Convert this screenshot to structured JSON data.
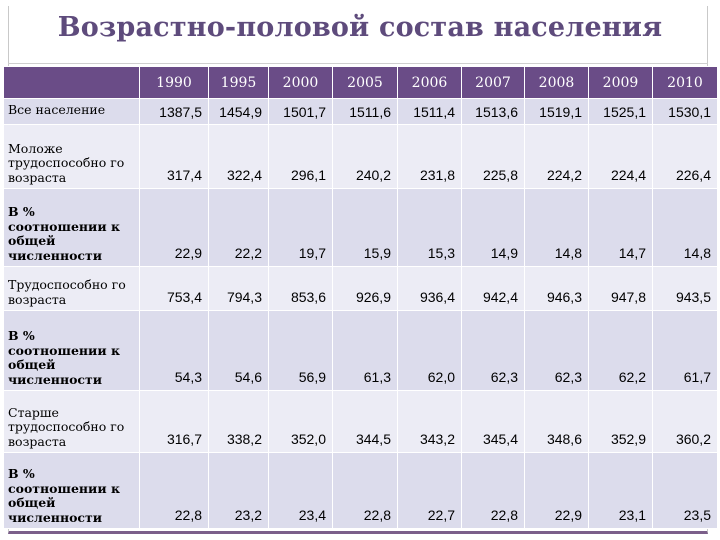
{
  "slide": {
    "title": "Возрастно-половой состав населения"
  },
  "table": {
    "years": [
      "1990",
      "1995",
      "2000",
      "2005",
      "2006",
      "2007",
      "2008",
      "2009",
      "2010"
    ],
    "rows": [
      {
        "label": "Все население",
        "values": [
          "1387,5",
          "1454,9",
          "1501,7",
          "1511,6",
          "1511,4",
          "1513,6",
          "1519,1",
          "1525,1",
          "1530,1"
        ]
      },
      {
        "label": "Моложе трудоспособно го возраста",
        "values": [
          "317,4",
          "322,4",
          "296,1",
          "240,2",
          "231,8",
          "225,8",
          "224,2",
          "224,4",
          "226,4"
        ]
      },
      {
        "label": "В % соотношении к общей численности",
        "values": [
          "22,9",
          "22,2",
          "19,7",
          "15,9",
          "15,3",
          "14,9",
          "14,8",
          "14,7",
          "14,8"
        ]
      },
      {
        "label": "Трудоспособно го возраста",
        "values": [
          "753,4",
          "794,3",
          "853,6",
          "926,9",
          "936,4",
          "942,4",
          "946,3",
          "947,8",
          "943,5"
        ]
      },
      {
        "label": "В % соотношении к общей численности",
        "values": [
          "54,3",
          "54,6",
          "56,9",
          "61,3",
          "62,0",
          "62,3",
          "62,3",
          "62,2",
          "61,7"
        ]
      },
      {
        "label": "Старше трудоспособно го возраста",
        "values": [
          "316,7",
          "338,2",
          "352,0",
          "344,5",
          "343,2",
          "345,4",
          "348,6",
          "352,9",
          "360,2"
        ]
      },
      {
        "label": "В % соотношении к общей численности",
        "values": [
          "22,8",
          "23,2",
          "23,4",
          "22,8",
          "22,7",
          "22,8",
          "22,9",
          "23,1",
          "23,5"
        ]
      }
    ]
  },
  "colors": {
    "title": "#5e4b7c",
    "header": "#6a4c87",
    "row_dark": "#dcdcec",
    "row_light": "#ececf5"
  }
}
